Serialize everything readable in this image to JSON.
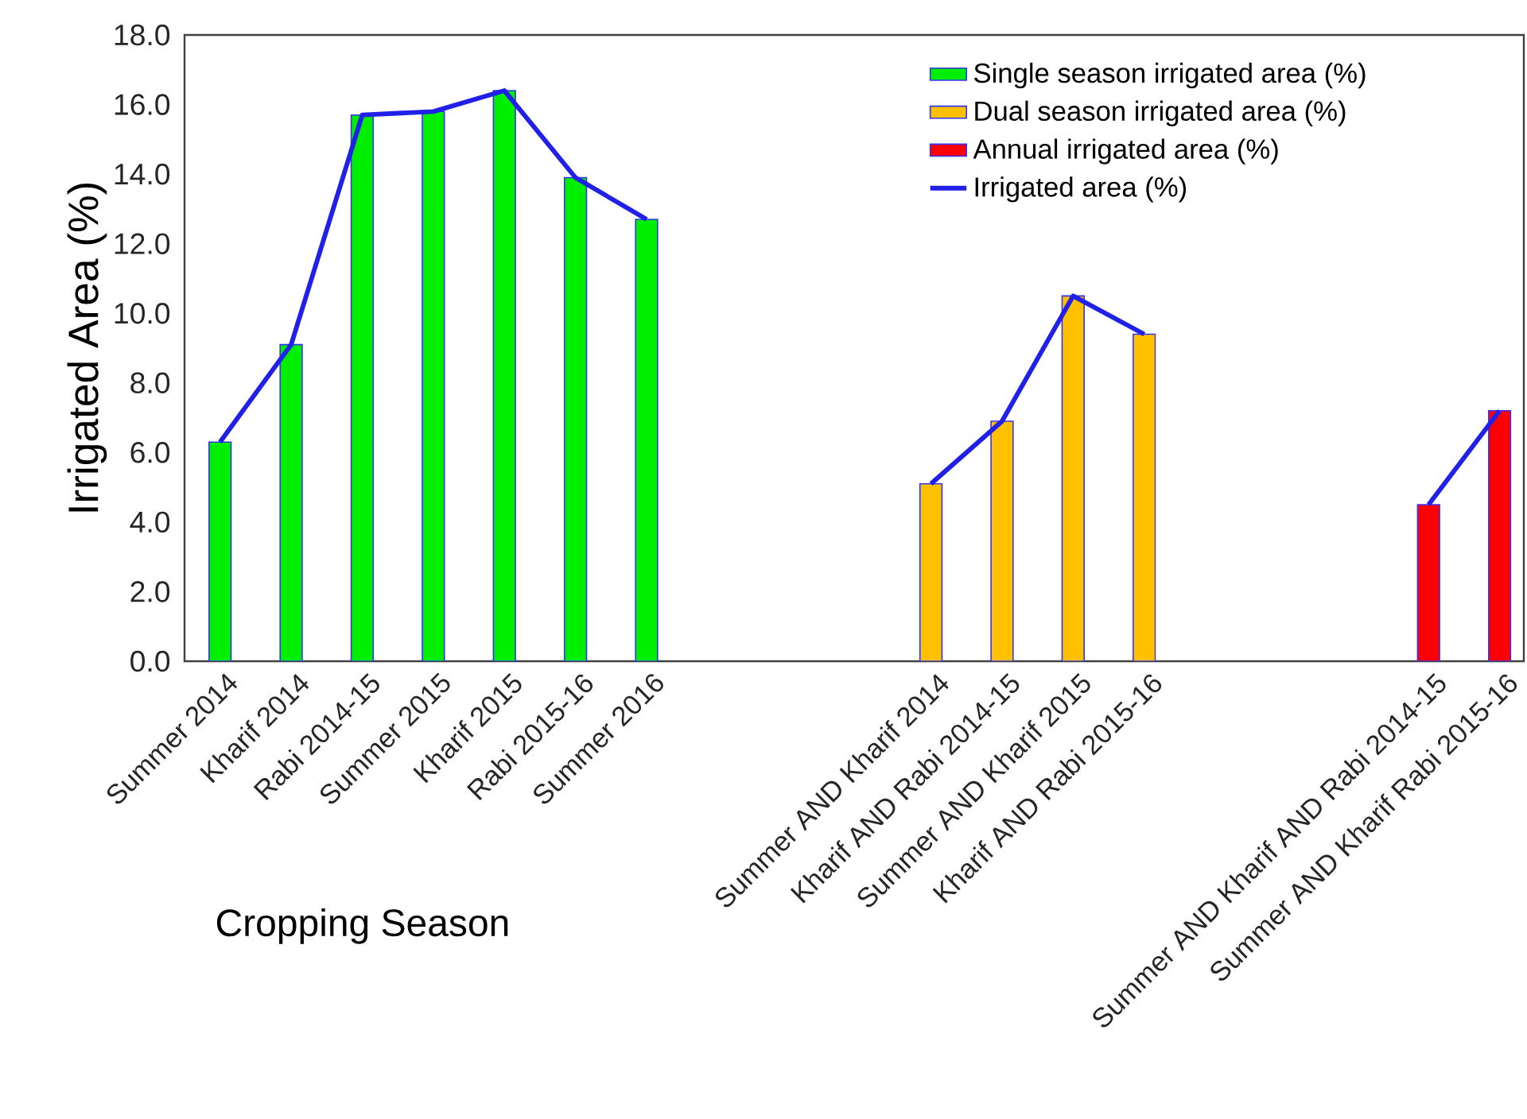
{
  "chart_data": {
    "type": "bar",
    "xlabel": "Cropping Season",
    "ylabel": "Irrigated Area (%)",
    "categories": [
      "Summer 2014",
      "Kharif 2014",
      "Rabi 2014-15",
      "Summer 2015",
      "Kharif 2015",
      "Rabi 2015-16",
      "Summer 2016",
      null,
      null,
      null,
      "Summer AND Kharif 2014",
      "Kharif AND Rabi 2014-15",
      "Summer AND Kharif 2015",
      "Kharif AND Rabi 2015-16",
      null,
      null,
      null,
      "Summer AND Kharif AND Rabi 2014-15",
      "Summer AND Kharif Rabi 2015-16"
    ],
    "series": [
      {
        "name": "Single season irrigated area (%)",
        "color": "#00ee00",
        "values": [
          6.3,
          9.1,
          15.7,
          15.8,
          16.4,
          13.9,
          12.7,
          null,
          null,
          null,
          null,
          null,
          null,
          null,
          null,
          null,
          null,
          null,
          null
        ]
      },
      {
        "name": "Dual season irrigated area (%)",
        "color": "#ffc000",
        "values": [
          null,
          null,
          null,
          null,
          null,
          null,
          null,
          null,
          null,
          null,
          5.1,
          6.9,
          10.5,
          9.4,
          null,
          null,
          null,
          null,
          null
        ]
      },
      {
        "name": "Annual irrigated area (%)",
        "color": "#ff0000",
        "values": [
          null,
          null,
          null,
          null,
          null,
          null,
          null,
          null,
          null,
          null,
          null,
          null,
          null,
          null,
          null,
          null,
          null,
          4.5,
          7.2
        ]
      },
      {
        "name": "Irrigated area (%)",
        "type": "line",
        "color": "#2020e8",
        "values": [
          6.3,
          9.1,
          15.7,
          15.8,
          16.4,
          13.9,
          12.7,
          null,
          null,
          null,
          5.1,
          6.9,
          10.5,
          9.4,
          null,
          null,
          null,
          4.5,
          7.2
        ]
      }
    ],
    "ylim": [
      0,
      18
    ],
    "yticks": [
      {
        "value": 0,
        "label": "0.0"
      },
      {
        "value": 2,
        "label": "2.0"
      },
      {
        "value": 4,
        "label": "4.0"
      },
      {
        "value": 6,
        "label": "6.0"
      },
      {
        "value": 8,
        "label": "8.0"
      },
      {
        "value": 10,
        "label": "10.0"
      },
      {
        "value": 12,
        "label": "12.0"
      },
      {
        "value": 14,
        "label": "14.0"
      },
      {
        "value": 16,
        "label": "16.0"
      },
      {
        "value": 18,
        "label": "18.0"
      }
    ],
    "legend": "top right",
    "marker": "none",
    "line_style": "solid"
  }
}
